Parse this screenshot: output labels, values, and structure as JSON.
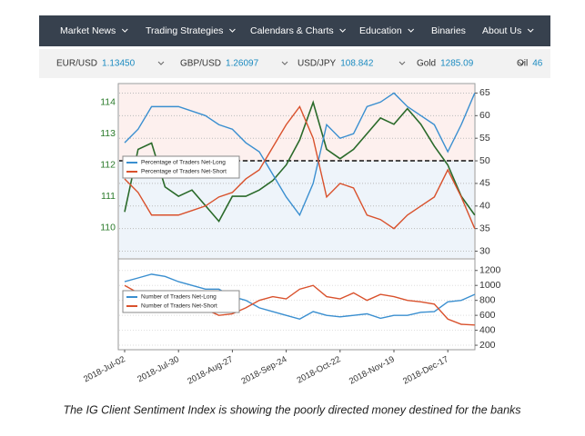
{
  "nav": [
    "Market News",
    "Trading Strategies",
    "Calendars & Charts",
    "Education",
    "Binaries",
    "About Us"
  ],
  "ticker": [
    {
      "symbol": "EUR/USD",
      "price": "1.13450"
    },
    {
      "symbol": "GBP/USD",
      "price": "1.26097"
    },
    {
      "symbol": "USD/JPY",
      "price": "108.842"
    },
    {
      "symbol": "Gold",
      "price": "1285.09"
    },
    {
      "symbol": "Oil",
      "price": "46"
    }
  ],
  "chart_data": {
    "type": "line",
    "categories": [
      "2018-Jul-02",
      null,
      null,
      null,
      "2018-Jul-30",
      null,
      null,
      null,
      "2018-Aug-27",
      null,
      null,
      null,
      "2018-Sep-24",
      null,
      null,
      null,
      "2018-Oct-22",
      null,
      null,
      null,
      "2018-Nov-19",
      null,
      null,
      null,
      "2018-Dec-17",
      null,
      null
    ],
    "ylim": [
      109,
      114.6
    ],
    "yticks": [
      110,
      111,
      112,
      113,
      114
    ],
    "y2lim": [
      28.3,
      67.1
    ],
    "y2ticks": [
      30,
      35,
      40,
      45,
      50,
      55,
      60,
      65
    ],
    "y3lim": [
      140,
      1355
    ],
    "y3ticks": [
      200,
      400,
      600,
      800,
      1000,
      1200
    ],
    "reference_line": 50,
    "grid": true,
    "series": [
      {
        "color": "#2a6a2a",
        "axis": "y",
        "values": [
          110.5,
          112.5,
          112.7,
          111.3,
          111.0,
          111.2,
          110.7,
          110.2,
          111.0,
          111.0,
          111.2,
          111.5,
          112.0,
          112.8,
          114.0,
          112.5,
          112.2,
          112.5,
          113.0,
          113.5,
          113.3,
          113.8,
          113.3,
          112.6,
          112.0,
          111.0,
          110.4
        ]
      },
      {
        "name": "Percentage of Traders Net-Long",
        "color": "#3a8fd0",
        "axis": "y2",
        "values": [
          54,
          57,
          62,
          62,
          62,
          61,
          60,
          58,
          57,
          54,
          52,
          47,
          42,
          38,
          45,
          58,
          55,
          56,
          62,
          63,
          65,
          62,
          60,
          58,
          52,
          58,
          65
        ]
      },
      {
        "name": "Percentage of Traders Net-Short",
        "color": "#d9512c",
        "axis": "y2",
        "values": [
          46,
          43,
          38,
          38,
          38,
          39,
          40,
          42,
          43,
          46,
          48,
          53,
          58,
          62,
          55,
          42,
          45,
          44,
          38,
          37,
          35,
          38,
          40,
          42,
          48,
          42,
          35
        ]
      },
      {
        "name": "Number of Traders Net-Long",
        "color": "#3a8fd0",
        "axis": "y3",
        "values": [
          1050,
          1100,
          1150,
          1120,
          1050,
          1000,
          950,
          950,
          850,
          800,
          700,
          650,
          600,
          550,
          650,
          600,
          580,
          600,
          620,
          560,
          600,
          600,
          640,
          650,
          780,
          800,
          880
        ]
      },
      {
        "name": "Number of Traders Net-Short",
        "color": "#d9512c",
        "axis": "y3",
        "values": [
          1000,
          900,
          850,
          800,
          700,
          720,
          680,
          600,
          620,
          700,
          800,
          850,
          820,
          950,
          1000,
          850,
          820,
          900,
          800,
          880,
          850,
          800,
          780,
          750,
          550,
          480,
          470
        ]
      }
    ]
  },
  "caption": "The IG Client Sentiment Index is showing the poorly directed money destined for the banks"
}
